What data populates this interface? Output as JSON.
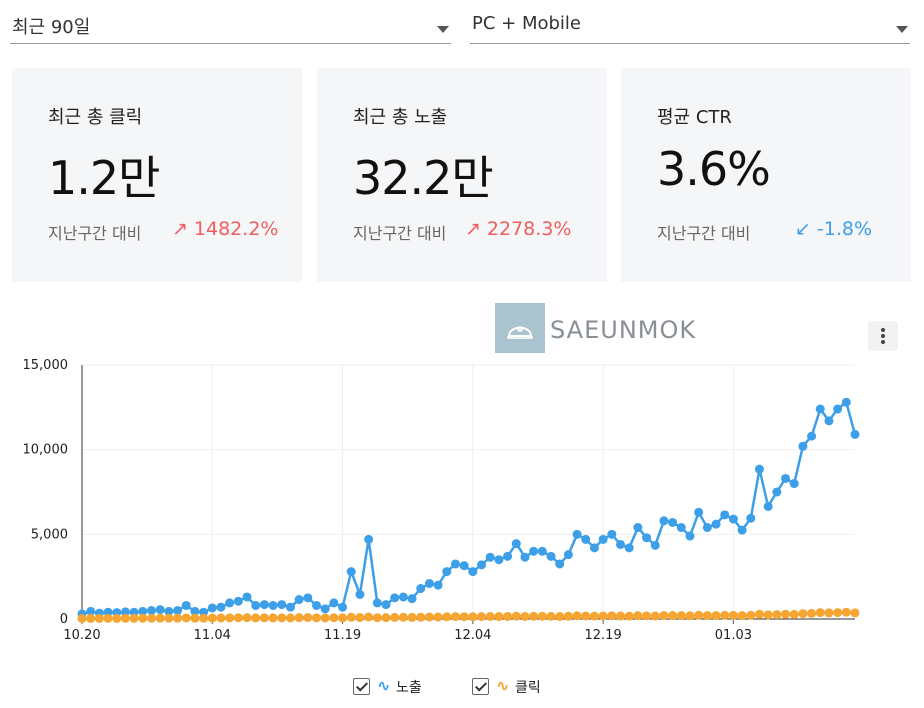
{
  "filters": {
    "period": "최근 90일",
    "device": "PC + Mobile"
  },
  "cards": [
    {
      "title": "최근 총 클릭",
      "value": "1.2만",
      "compare_label": "지난구간 대비",
      "delta": "1482.2%",
      "direction": "up"
    },
    {
      "title": "최근 총 노출",
      "value": "32.2만",
      "compare_label": "지난구간 대비",
      "delta": "2278.3%",
      "direction": "up"
    },
    {
      "title": "평균 CTR",
      "value": "3.6%",
      "compare_label": "지난구간 대비",
      "delta": "-1.8%",
      "direction": "down"
    }
  ],
  "icons": {
    "up": "↗",
    "down": "↙",
    "series": "∿"
  },
  "watermark": "SAEUNMOK",
  "colors": {
    "impressions": "#3d9fe8",
    "clicks": "#f5a530",
    "up": "#ef5e5e",
    "down": "#3d9fe8",
    "card_bg": "#f5f6f8"
  },
  "legend": [
    {
      "label": "노출",
      "color": "#3d9fe8"
    },
    {
      "label": "클릭",
      "color": "#f5a530"
    }
  ],
  "chart_data": {
    "type": "line",
    "x_ticks": [
      "10.20",
      "11.04",
      "11.19",
      "12.04",
      "12.19",
      "01.03"
    ],
    "x_tick_index": [
      0,
      15,
      30,
      45,
      60,
      75
    ],
    "ylim": [
      0,
      15000
    ],
    "y_ticks": [
      "0",
      "5,000",
      "10,000",
      "15,000"
    ],
    "y_tick_values": [
      0,
      5000,
      10000,
      15000
    ],
    "series": [
      {
        "name": "노출",
        "color": "#3d9fe8",
        "values": [
          300,
          450,
          350,
          400,
          380,
          420,
          400,
          450,
          500,
          550,
          450,
          500,
          800,
          450,
          400,
          650,
          700,
          950,
          1050,
          1300,
          800,
          850,
          800,
          850,
          700,
          1150,
          1250,
          800,
          600,
          950,
          700,
          2800,
          1450,
          4700,
          950,
          850,
          1250,
          1300,
          1200,
          1800,
          2100,
          2000,
          2800,
          3250,
          3150,
          2800,
          3200,
          3650,
          3500,
          3700,
          4450,
          3650,
          4000,
          4000,
          3700,
          3250,
          3800,
          5000,
          4700,
          4200,
          4700,
          5000,
          4400,
          4200,
          5400,
          4800,
          4350,
          5800,
          5700,
          5400,
          4900,
          6300,
          5400,
          5600,
          6150,
          5900,
          5250,
          5950,
          8850,
          6650,
          7500,
          8300,
          8000,
          10200,
          10800,
          12400,
          11700,
          12400,
          12800,
          10900
        ]
      },
      {
        "name": "클릭",
        "color": "#f5a530",
        "values": [
          30,
          35,
          30,
          40,
          35,
          40,
          40,
          45,
          45,
          50,
          45,
          50,
          60,
          50,
          45,
          55,
          60,
          70,
          75,
          80,
          65,
          70,
          65,
          70,
          65,
          80,
          85,
          70,
          60,
          75,
          65,
          100,
          85,
          120,
          75,
          80,
          95,
          100,
          95,
          110,
          120,
          115,
          130,
          140,
          135,
          130,
          140,
          150,
          145,
          150,
          170,
          150,
          160,
          160,
          155,
          145,
          160,
          190,
          180,
          170,
          180,
          190,
          175,
          170,
          200,
          185,
          175,
          210,
          205,
          200,
          190,
          220,
          200,
          205,
          220,
          215,
          200,
          220,
          280,
          240,
          260,
          280,
          270,
          320,
          330,
          380,
          360,
          380,
          400,
          360
        ]
      }
    ]
  }
}
